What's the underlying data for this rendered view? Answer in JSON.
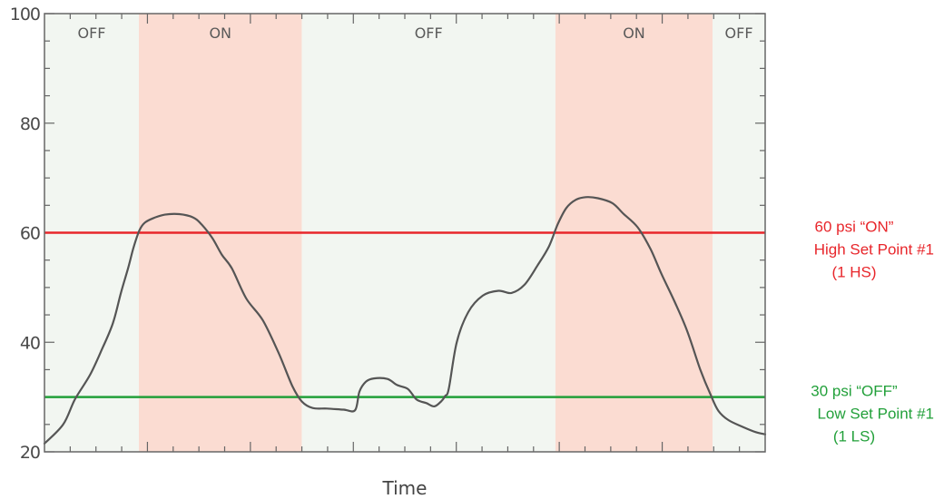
{
  "chart_data": {
    "type": "line",
    "xlabel": "Time",
    "ylabel": "",
    "xlim": [
      0,
      100
    ],
    "ylim": [
      20,
      100
    ],
    "yticks": [
      20,
      40,
      60,
      80,
      100
    ],
    "bands": [
      {
        "label": "OFF",
        "state": "off",
        "from": 0,
        "to": 13.1
      },
      {
        "label": "ON",
        "state": "on",
        "from": 13.1,
        "to": 35.7
      },
      {
        "label": "OFF",
        "state": "off",
        "from": 35.7,
        "to": 70.9
      },
      {
        "label": "ON",
        "state": "on",
        "from": 70.9,
        "to": 92.7
      },
      {
        "label": "OFF",
        "state": "off",
        "from": 92.7,
        "to": 100
      }
    ],
    "thresholds": [
      {
        "value": 60,
        "color": "#e8262b",
        "lines": [
          "60 psi “ON”",
          "High Set Point #1",
          "(1 HS)"
        ]
      },
      {
        "value": 30,
        "color": "#22a03a",
        "lines": [
          "30 psi “OFF”",
          "Low Set Point #1",
          "(1 LS)"
        ]
      }
    ],
    "series": [
      {
        "color": "#555555",
        "x": [
          0,
          2.6,
          4.2,
          6.3,
          7.9,
          9.5,
          10.6,
          11.6,
          12.4,
          13.2,
          13.9,
          15.0,
          16.7,
          18.7,
          20.6,
          21.8,
          23.3,
          24.6,
          26.0,
          28.0,
          30.3,
          32.5,
          34.4,
          35.7,
          37.2,
          39.2,
          41.5,
          43.1,
          43.7,
          44.6,
          45.7,
          47.6,
          48.9,
          50.4,
          51.5,
          52.2,
          53.0,
          54.1,
          55.1,
          55.6,
          56.1,
          57.2,
          58.8,
          60.8,
          63.0,
          64.8,
          66.6,
          68.4,
          70.0,
          71.2,
          72.4,
          73.7,
          75.1,
          76.8,
          78.8,
          80.3,
          82.3,
          84.1,
          85.6,
          87.4,
          89.2,
          91.0,
          92.4,
          93.5,
          94.9,
          96.8,
          98.7,
          100
        ],
        "values": [
          21.5,
          25.0,
          29.5,
          34.0,
          38.5,
          43.5,
          49.0,
          53.5,
          57.5,
          60.5,
          61.8,
          62.6,
          63.3,
          63.4,
          62.8,
          61.5,
          59.0,
          56.0,
          53.5,
          48.0,
          44.0,
          38.0,
          32.0,
          29.2,
          28.0,
          27.9,
          27.7,
          27.6,
          31.0,
          32.8,
          33.4,
          33.3,
          32.2,
          31.5,
          29.7,
          29.2,
          28.9,
          28.3,
          29.3,
          30.2,
          31.5,
          40.0,
          45.5,
          48.5,
          49.4,
          49.0,
          50.5,
          54.0,
          57.5,
          61.5,
          64.5,
          66.0,
          66.5,
          66.3,
          65.4,
          63.5,
          61.0,
          57.0,
          52.5,
          47.5,
          42.0,
          35.0,
          30.5,
          27.5,
          25.8,
          24.6,
          23.6,
          23.2
        ]
      }
    ]
  }
}
